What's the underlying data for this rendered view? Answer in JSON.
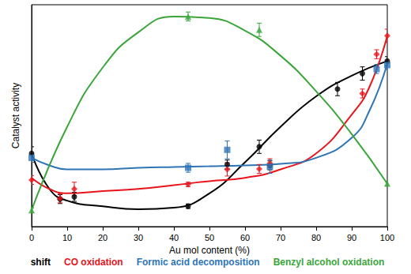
{
  "chart_data": {
    "type": "line",
    "x_label": "Au mol content (%)",
    "y_label": "Catalyst activity",
    "xlim": [
      0,
      100
    ],
    "xticks": [
      0,
      10,
      20,
      30,
      40,
      50,
      60,
      70,
      80,
      90,
      100
    ],
    "ylim": [
      0,
      100
    ],
    "tick_labels": "x",
    "legend": "bottom",
    "series": [
      {
        "name": "shift",
        "color": "#000000",
        "marker": "circle",
        "x": [
          0,
          8,
          12,
          44,
          55,
          64,
          67,
          86,
          93,
          100
        ],
        "values": [
          33,
          12.4,
          13.4,
          9.2,
          28,
          36,
          27.6,
          62,
          69,
          74.6
        ],
        "errors": [
          3,
          2,
          2,
          1,
          2,
          3,
          2,
          3,
          3,
          2
        ],
        "curve_x": [
          0,
          5,
          10,
          20,
          30,
          40,
          50,
          60,
          70,
          80,
          90,
          100
        ],
        "curve_values": [
          33,
          17,
          11.7,
          9.2,
          7.8,
          8.5,
          15,
          29,
          45,
          58.7,
          68,
          74.6
        ]
      },
      {
        "name": "CO oxidation",
        "color": "#e8141c",
        "marker": "diamond",
        "x": [
          0,
          8,
          12,
          44,
          55,
          64,
          67,
          93,
          97,
          100
        ],
        "values": [
          21,
          12.7,
          17,
          19,
          25.8,
          26,
          28.6,
          60,
          77.7,
          86
        ],
        "errors": [
          2,
          2,
          3,
          1,
          3,
          2,
          2,
          2,
          2,
          3
        ],
        "curve_x": [
          0,
          5,
          10,
          20,
          30,
          40,
          50,
          60,
          70,
          80,
          90,
          95,
          100
        ],
        "curve_values": [
          22,
          17,
          15,
          16,
          17,
          18.7,
          20.5,
          22,
          25.8,
          33,
          50.5,
          63,
          86
        ]
      },
      {
        "name": "Formic acid decomposition",
        "color": "#2e75b6",
        "marker": "rect",
        "x": [
          0,
          44,
          55,
          67,
          97,
          100
        ],
        "values": [
          31,
          26.5,
          34.6,
          27,
          71,
          72.8
        ],
        "errors": [
          2,
          2,
          4,
          3,
          2,
          2
        ],
        "curve_x": [
          0,
          5,
          10,
          20,
          30,
          40,
          50,
          60,
          70,
          80,
          90,
          95,
          100
        ],
        "curve_values": [
          31,
          27.6,
          25.8,
          25.8,
          26.5,
          26.9,
          27.2,
          27.6,
          28.3,
          31,
          40,
          52.3,
          73.5
        ]
      },
      {
        "name": "Benzyl alcohol oxidation",
        "color": "#3aa63a",
        "marker": "triangle",
        "x": [
          0,
          44,
          64,
          100
        ],
        "values": [
          7.4,
          94.7,
          88.7,
          19.4
        ],
        "errors": [
          1,
          2,
          3,
          1
        ],
        "curve_x": [
          0,
          10,
          20,
          30,
          40,
          50,
          60,
          70,
          80,
          90,
          100
        ],
        "curve_values": [
          7.4,
          45,
          71.7,
          87.6,
          94.7,
          94,
          88.3,
          77,
          61,
          41.7,
          19.4
        ]
      }
    ]
  }
}
